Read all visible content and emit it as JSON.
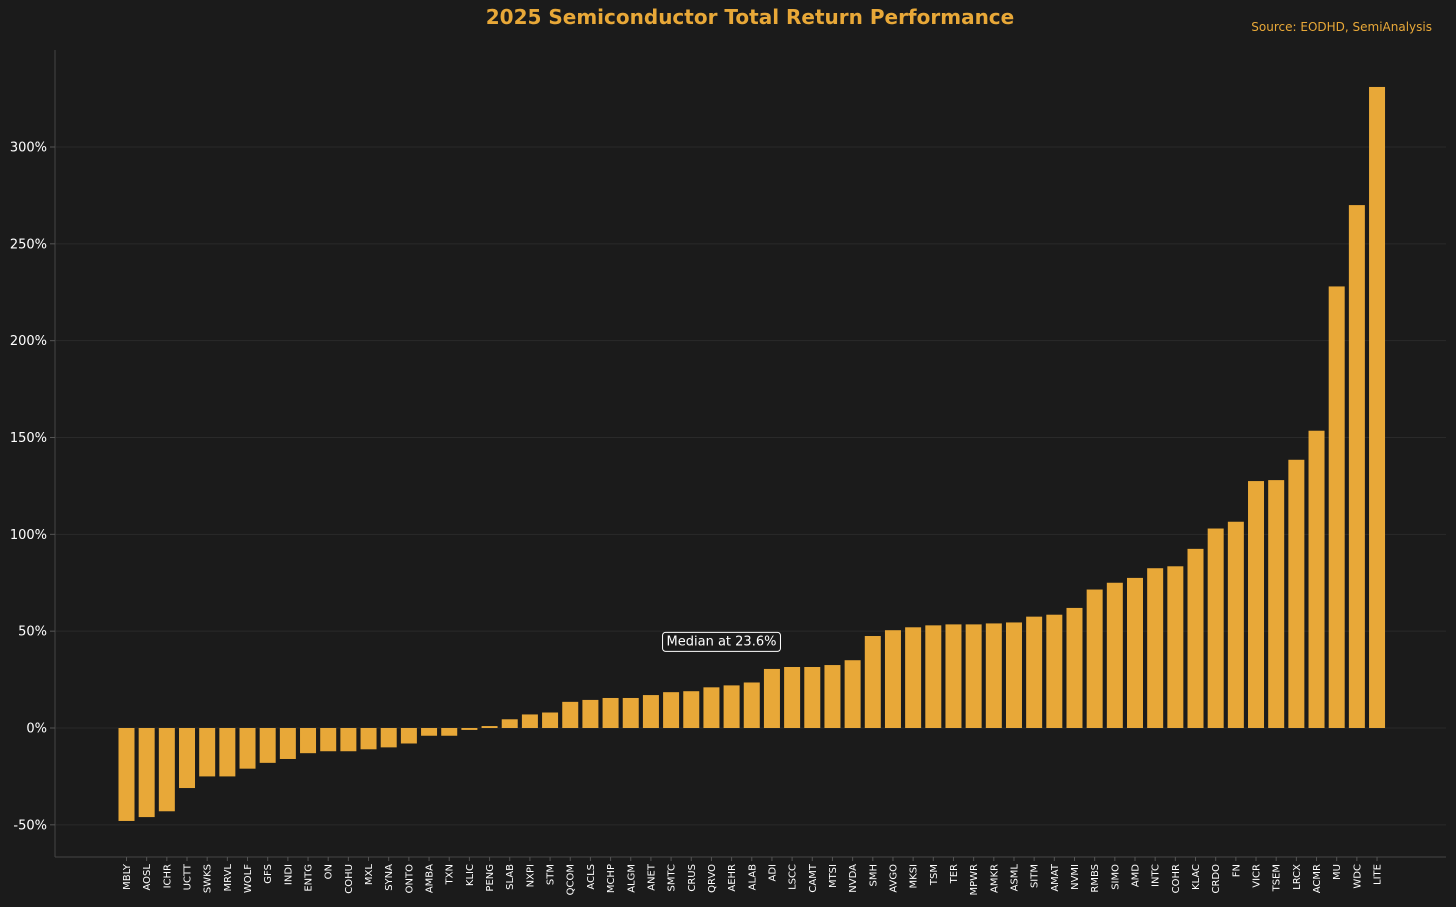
{
  "chart_data": {
    "type": "bar",
    "title": "2025 Semiconductor Total Return Performance",
    "source": "Source: EODHD, SemiAnalysis",
    "xlabel": "",
    "ylabel": "",
    "ylim": [
      -66,
      340
    ],
    "yticks": [
      -50,
      0,
      50,
      100,
      150,
      200,
      250,
      300
    ],
    "ytick_labels": [
      "-50%",
      "0%",
      "50%",
      "100%",
      "150%",
      "200%",
      "250%",
      "300%"
    ],
    "grid": "horizontal",
    "bar_color": "#e8a838",
    "categories": [
      "MBLY",
      "AOSL",
      "ICHR",
      "UCTT",
      "SWKS",
      "MRVL",
      "WOLF",
      "GFS",
      "INDI",
      "ENTG",
      "ON",
      "COHU",
      "MXL",
      "SYNA",
      "ONTO",
      "AMBA",
      "TXN",
      "KLIC",
      "PENG",
      "SLAB",
      "NXPI",
      "STM",
      "QCOM",
      "ACLS",
      "MCHP",
      "ALGM",
      "ANET",
      "SMTC",
      "CRUS",
      "QRVO",
      "AEHR",
      "ALAB",
      "ADI",
      "LSCC",
      "CAMT",
      "MTSI",
      "NVDA",
      "SMH",
      "AVGO",
      "MKSI",
      "TSM",
      "TER",
      "MPWR",
      "AMKR",
      "ASML",
      "SITM",
      "AMAT",
      "NVMI",
      "RMBS",
      "SIMO",
      "AMD",
      "INTC",
      "COHR",
      "KLAC",
      "CRDO",
      "FN",
      "VICR",
      "TSEM",
      "LRCX",
      "ACMR",
      "MU",
      "WDC",
      "LITE"
    ],
    "values": [
      -48,
      -46,
      -43,
      -31,
      -25,
      -25,
      -21,
      -18,
      -16,
      -13,
      -12,
      -12,
      -11,
      -10,
      -8,
      -4,
      -4,
      -1,
      1,
      4.5,
      7,
      8,
      13.5,
      14.5,
      15.5,
      15.5,
      17,
      18.5,
      19,
      21,
      22,
      23.5,
      30.5,
      31.5,
      31.5,
      32.5,
      35,
      47.5,
      50.5,
      52,
      53,
      53.5,
      53.5,
      54,
      54.5,
      57.5,
      58.5,
      62,
      71.5,
      75,
      77.5,
      82.5,
      83.5,
      92.5,
      103,
      106.5,
      127.5,
      128,
      138.5,
      153.5,
      228,
      270,
      331
    ],
    "annotation": {
      "text": "Median at 23.6%",
      "x": 29.5,
      "y": 45
    }
  }
}
